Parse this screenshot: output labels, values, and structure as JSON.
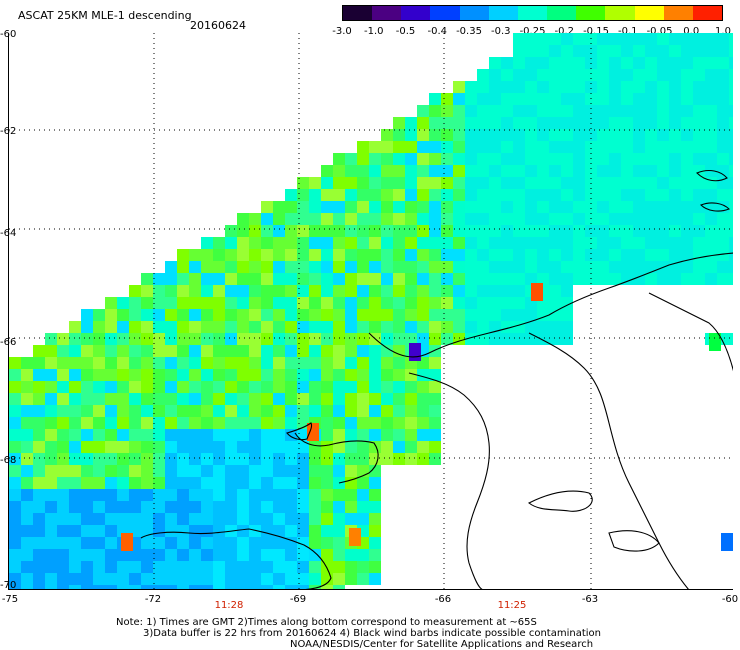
{
  "header": {
    "title": "ASCAT 25KM MLE-1 descending",
    "date": "20160624"
  },
  "colorbar": {
    "labels": [
      "-3.0",
      "-1.0",
      "-0.5",
      "-0.4",
      "-0.35",
      "-0.3",
      "-0.25",
      "-0.2",
      "-0.15",
      "-0.1",
      "-0.05",
      "0.0",
      "1.0"
    ],
    "colors": [
      "#1a0033",
      "#4b0082",
      "#3300cc",
      "#0040ff",
      "#0090ff",
      "#00d0ff",
      "#00ffd0",
      "#00ff80",
      "#40ff00",
      "#b0ff00",
      "#ffff00",
      "#ff8000",
      "#ff2000"
    ]
  },
  "axes": {
    "y_ticks": [
      "-60",
      "-62",
      "-64",
      "-66",
      "-68",
      "-70"
    ],
    "x_ticks": [
      "-75",
      "-72",
      "-69",
      "-66",
      "-63",
      "-60"
    ],
    "times": [
      "11:28",
      "11:25"
    ]
  },
  "map_data": {
    "projection": "lat-lon",
    "lon_range": [
      -75,
      -60
    ],
    "lat_range": [
      -70,
      -60
    ],
    "grid": "dotted",
    "field": "ASCAT MLE-1 residual"
  },
  "notes": {
    "line1": "Note: 1) Times are GMT 2)Times along bottom correspond to measurement at ~65S",
    "line2": "3)Data buffer is 22 hrs from 20160624 4) Black wind barbs indicate possible contamination",
    "line3": "NOAA/NESDIS/Center for Satellite Applications and Research"
  }
}
